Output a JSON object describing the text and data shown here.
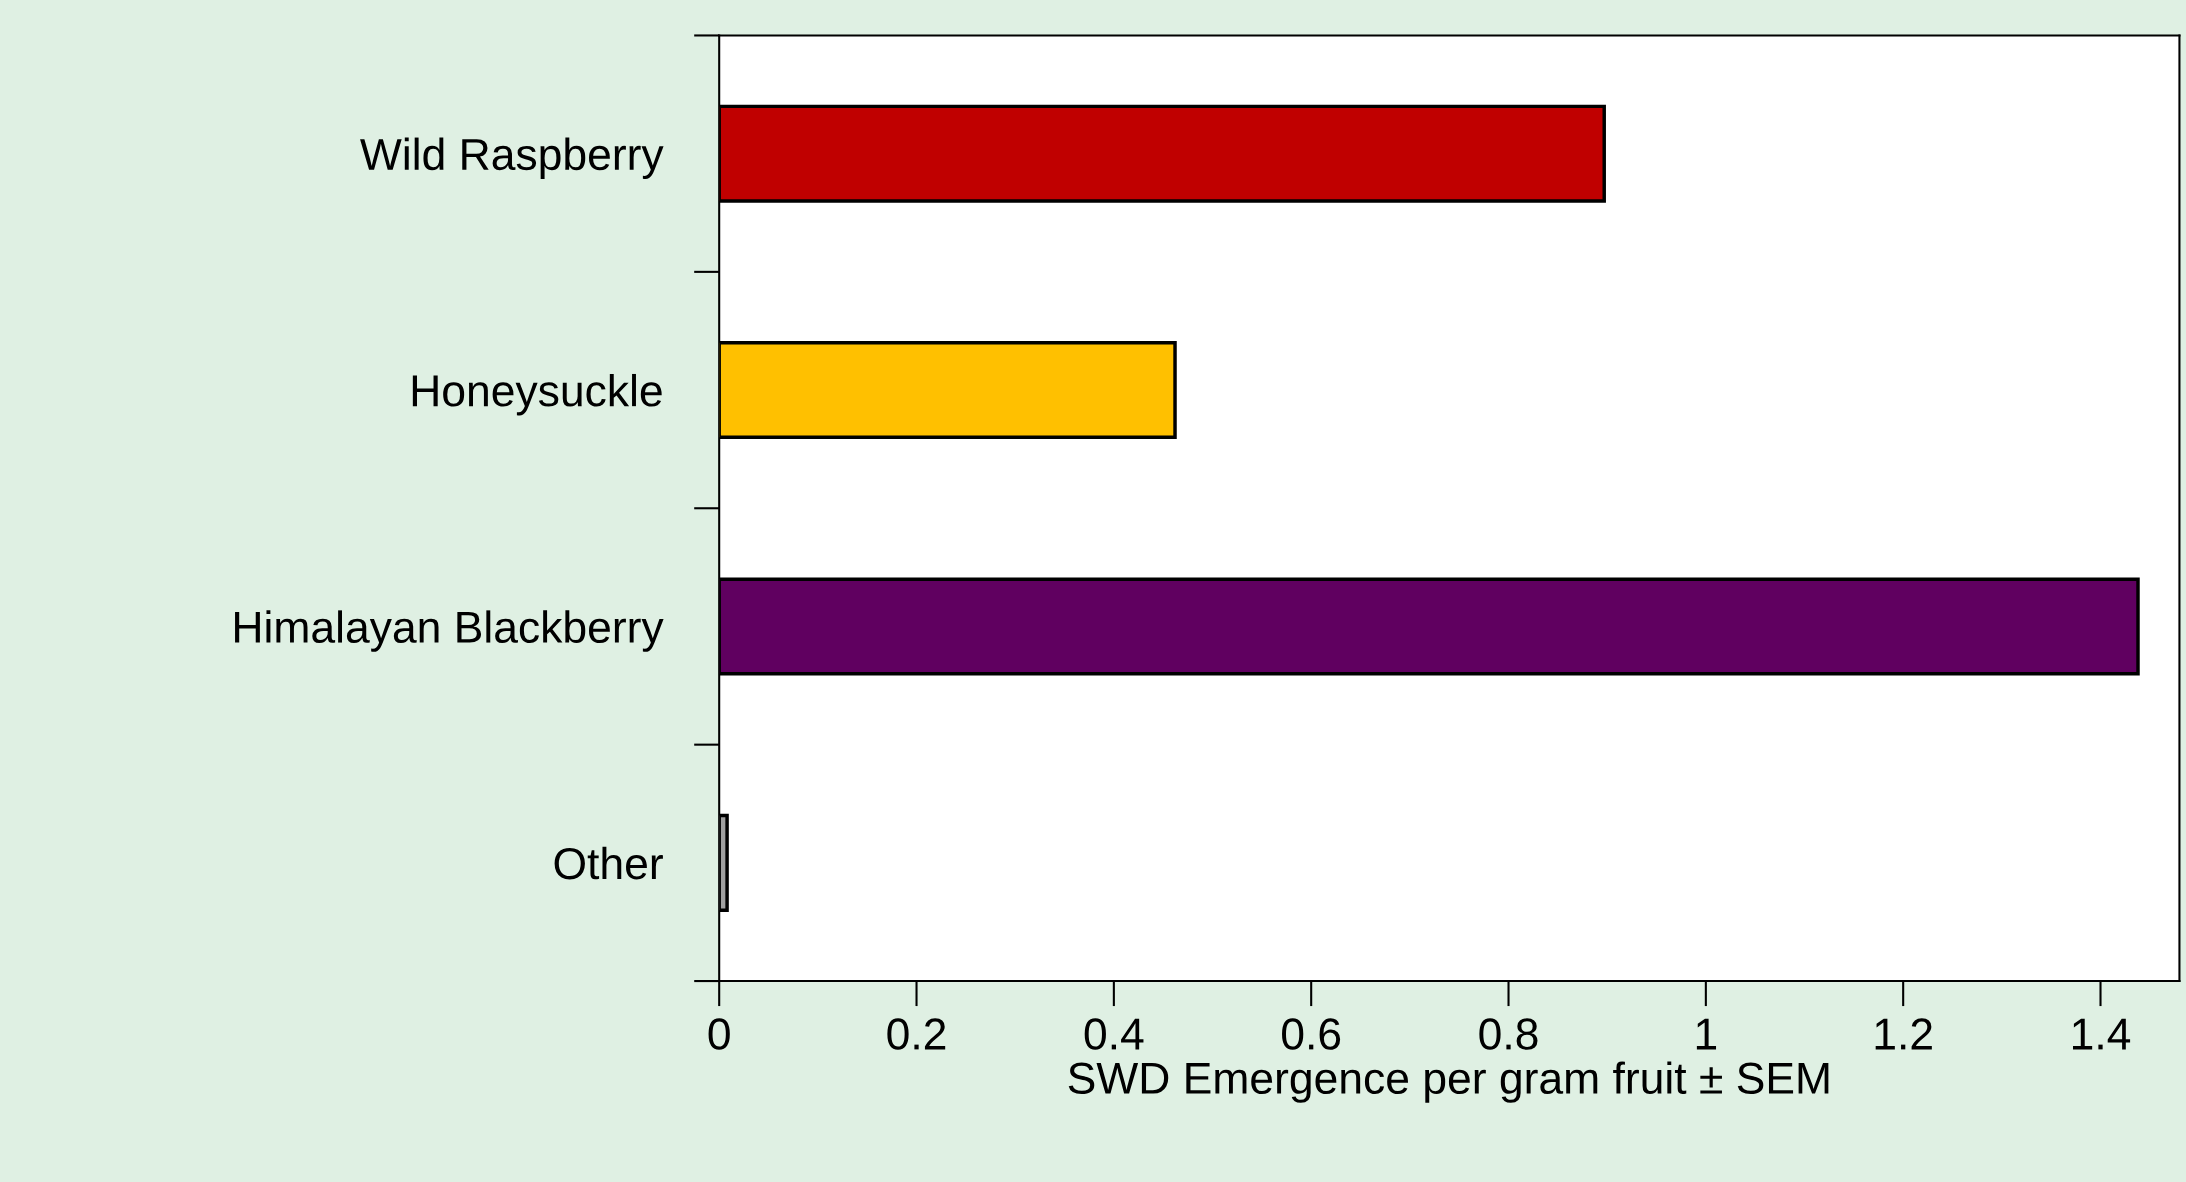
{
  "chart_data": {
    "type": "bar",
    "orientation": "horizontal",
    "xlabel": "SWD Emergence per gram fruit ± SEM",
    "categories": [
      "Wild Raspberry",
      "Honeysuckle",
      "Himalayan Blackberry",
      "Other"
    ],
    "values": [
      0.897,
      0.462,
      1.438,
      0.008
    ],
    "colors": [
      "#c00000",
      "#ffc000",
      "#600060",
      "#a0a0a0"
    ],
    "xlim": [
      0,
      1.48
    ],
    "xticks": [
      0,
      0.2,
      0.4,
      0.6,
      0.8,
      1,
      1.2,
      1.4
    ],
    "grid": false,
    "legend": false
  }
}
